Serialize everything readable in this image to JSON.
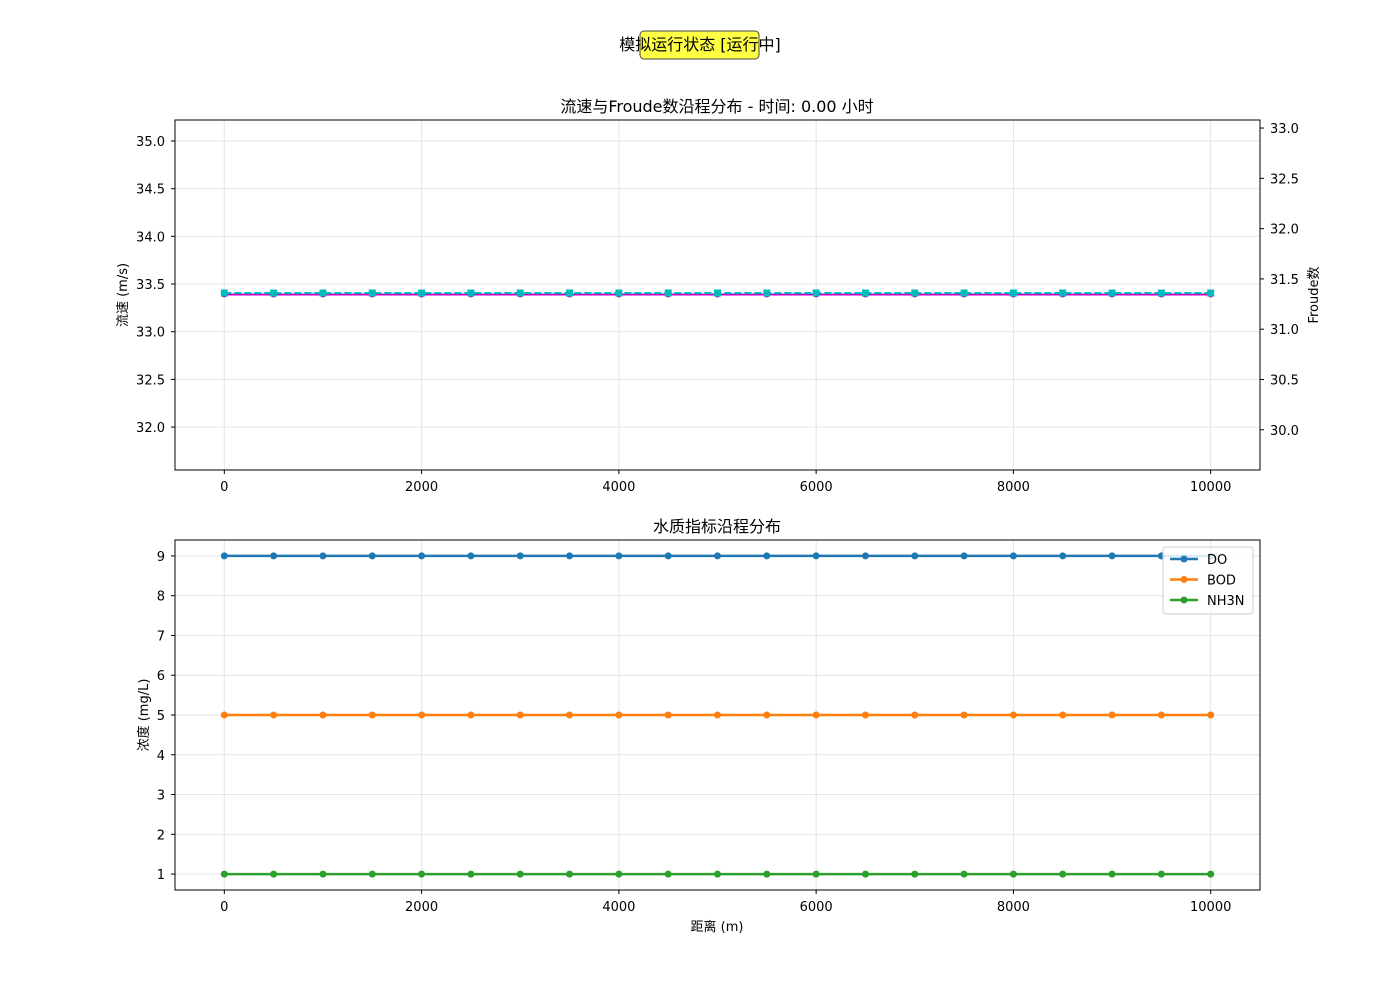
{
  "status_badge": "模拟运行状态 [运行中]",
  "chart_data": [
    {
      "type": "line",
      "title": "流速与Froude数沿程分布 - 时间: 0.00 小时",
      "xlabel": "",
      "ylabel_left": "流速 (m/s)",
      "ylabel_right": "Froude数",
      "left_color": "#cc00cc",
      "right_color": "#00bbbb",
      "xlim": [
        -500,
        10500
      ],
      "ylim_left": [
        31.55,
        35.22
      ],
      "ylim_right": [
        29.6,
        33.08
      ],
      "x_ticks": [
        0,
        2000,
        4000,
        6000,
        8000,
        10000
      ],
      "y_ticks_left": [
        32.0,
        32.5,
        33.0,
        33.5,
        34.0,
        34.5,
        35.0
      ],
      "y_ticks_right": [
        30.0,
        30.5,
        31.0,
        31.5,
        32.0,
        32.5,
        33.0
      ],
      "grid": true,
      "x": [
        0,
        500,
        1000,
        1500,
        2000,
        2500,
        3000,
        3500,
        4000,
        4500,
        5000,
        5500,
        6000,
        6500,
        7000,
        7500,
        8000,
        8500,
        9000,
        9500,
        10000
      ],
      "series": [
        {
          "axis": "left",
          "color": "#cc00cc",
          "values": [
            33.39,
            33.39,
            33.39,
            33.39,
            33.39,
            33.39,
            33.39,
            33.39,
            33.39,
            33.39,
            33.39,
            33.39,
            33.39,
            33.39,
            33.39,
            33.39,
            33.39,
            33.39,
            33.39,
            33.39,
            33.39
          ]
        },
        {
          "axis": "right",
          "color": "#00bbbb",
          "values": [
            31.36,
            31.36,
            31.36,
            31.36,
            31.36,
            31.36,
            31.36,
            31.36,
            31.36,
            31.36,
            31.36,
            31.36,
            31.36,
            31.36,
            31.36,
            31.36,
            31.36,
            31.36,
            31.36,
            31.36,
            31.36
          ]
        }
      ]
    },
    {
      "type": "line",
      "title": "水质指标沿程分布",
      "xlabel": "距离 (m)",
      "ylabel": "浓度 (mg/L)",
      "xlim": [
        -500,
        10500
      ],
      "ylim": [
        0.6,
        9.4
      ],
      "x_ticks": [
        0,
        2000,
        4000,
        6000,
        8000,
        10000
      ],
      "y_ticks": [
        1,
        2,
        3,
        4,
        5,
        6,
        7,
        8,
        9
      ],
      "grid": true,
      "legend": "top-right",
      "x": [
        0,
        500,
        1000,
        1500,
        2000,
        2500,
        3000,
        3500,
        4000,
        4500,
        5000,
        5500,
        6000,
        6500,
        7000,
        7500,
        8000,
        8500,
        9000,
        9500,
        10000
      ],
      "series": [
        {
          "name": "DO",
          "color": "#1f77b4",
          "values": [
            9,
            9,
            9,
            9,
            9,
            9,
            9,
            9,
            9,
            9,
            9,
            9,
            9,
            9,
            9,
            9,
            9,
            9,
            9,
            9,
            9
          ]
        },
        {
          "name": "BOD",
          "color": "#ff7f0e",
          "values": [
            5,
            5,
            5,
            5,
            5,
            5,
            5,
            5,
            5,
            5,
            5,
            5,
            5,
            5,
            5,
            5,
            5,
            5,
            5,
            5,
            5
          ]
        },
        {
          "name": "NH3N",
          "color": "#2ca02c",
          "values": [
            1,
            1,
            1,
            1,
            1,
            1,
            1,
            1,
            1,
            1,
            1,
            1,
            1,
            1,
            1,
            1,
            1,
            1,
            1,
            1,
            1
          ]
        }
      ]
    }
  ]
}
